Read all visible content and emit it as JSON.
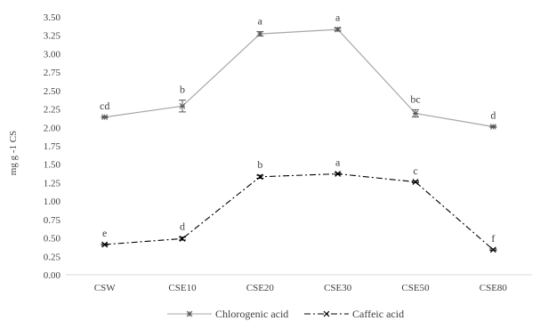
{
  "chart_data": {
    "type": "line",
    "categories": [
      "CSW",
      "CSE10",
      "CSE20",
      "CSE30",
      "CSE50",
      "CSE80"
    ],
    "ylabel": "mg g -1 CS",
    "ylim": [
      0,
      3.5
    ],
    "yticks": [
      0.0,
      0.25,
      0.5,
      0.75,
      1.0,
      1.25,
      1.5,
      1.75,
      2.0,
      2.25,
      2.5,
      2.75,
      3.0,
      3.25,
      3.5
    ],
    "ytick_labels": [
      "0.00",
      "0.25",
      "0.50",
      "0.75",
      "1.00",
      "1.25",
      "1.50",
      "1.75",
      "2.00",
      "2.25",
      "2.50",
      "2.75",
      "3.00",
      "3.25",
      "3.50"
    ],
    "grid": false,
    "legend_position": "bottom",
    "series": [
      {
        "name": "Chlorogenic acid",
        "color": "#a6a6a6",
        "line_style": "solid",
        "values": [
          2.14,
          2.29,
          3.27,
          3.33,
          2.19,
          2.01
        ],
        "errors": [
          0.01,
          0.08,
          0.03,
          0.02,
          0.05,
          0.01
        ],
        "labels": [
          "cd",
          "b",
          "a",
          "a",
          "bc",
          "d"
        ]
      },
      {
        "name": "Caffeic acid",
        "color": "#000000",
        "line_style": "dashdot",
        "values": [
          0.41,
          0.49,
          1.33,
          1.37,
          1.26,
          0.34
        ],
        "errors": [
          0.01,
          0.02,
          0.02,
          0.01,
          0.01,
          0.01
        ],
        "labels": [
          "e",
          "d",
          "b",
          "a",
          "c",
          "f"
        ]
      }
    ]
  }
}
